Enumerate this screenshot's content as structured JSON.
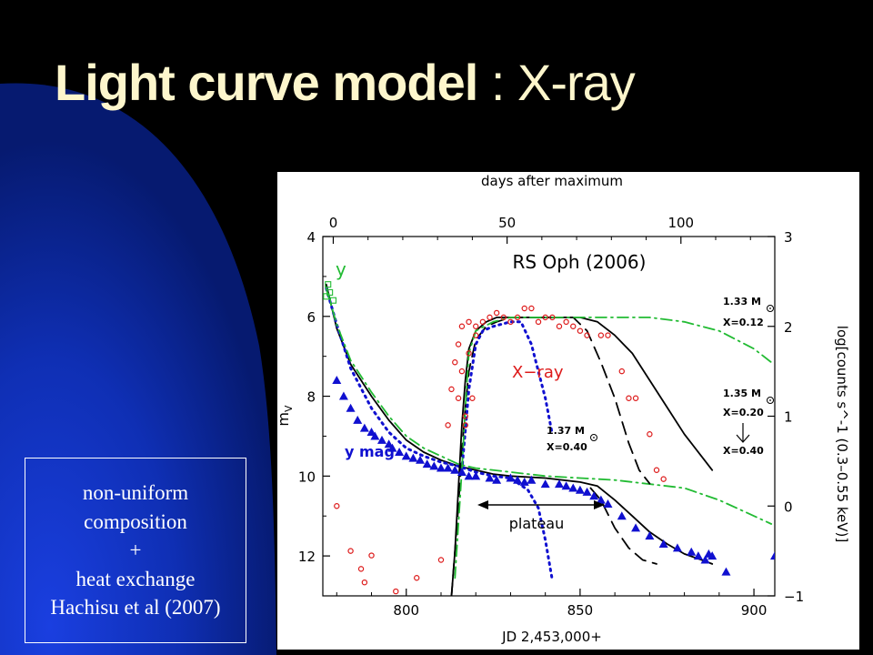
{
  "slide": {
    "title_bold": "Light curve model",
    "title_rest": " : X-ray",
    "note_lines": [
      "non-uniform",
      "composition",
      "+",
      "heat exchange",
      "Hachisu et al (2007)"
    ],
    "colors": {
      "background": "#000000",
      "glow": "#1533c8",
      "title": "#fdf6cc"
    }
  },
  "chart_data": {
    "type": "scatter",
    "title": "RS Oph (2006)",
    "xlabel": "JD 2,453,000+",
    "xlabel_top": "days after maximum",
    "ylabel": "m_V",
    "ylabel_right": "log[counts s^-1 (0.3–0.55 keV)]",
    "xlim": [
      776,
      906
    ],
    "ylim": [
      13,
      4
    ],
    "ylim_right": [
      -1,
      3
    ],
    "x_ticks": [
      800,
      850,
      900
    ],
    "top_ticks": [
      0,
      50,
      100
    ],
    "top_axis_offset": 779,
    "y_ticks": [
      4,
      6,
      8,
      10,
      12
    ],
    "y_right_ticks": [
      -1,
      0,
      1,
      2,
      3
    ],
    "annotations": {
      "y_letter": "y",
      "xray": "X−ray",
      "ymag": "y mag",
      "plateau": "plateau",
      "m133": "1.33 M",
      "x012": "X=0.12",
      "m135": "1.35 M",
      "x020": "X=0.20",
      "x040b": "X=0.40",
      "m137": "1.37 M",
      "x040a": "X=0.40"
    },
    "series": [
      {
        "name": "y mag",
        "marker": "triangle",
        "color": "#1010d0",
        "points": [
          [
            780,
            7.6
          ],
          [
            782,
            8.0
          ],
          [
            784,
            8.3
          ],
          [
            786,
            8.6
          ],
          [
            788,
            8.8
          ],
          [
            790,
            8.9
          ],
          [
            791,
            9.0
          ],
          [
            793,
            9.1
          ],
          [
            795,
            9.2
          ],
          [
            796,
            9.3
          ],
          [
            798,
            9.4
          ],
          [
            800,
            9.5
          ],
          [
            802,
            9.55
          ],
          [
            804,
            9.6
          ],
          [
            806,
            9.7
          ],
          [
            808,
            9.75
          ],
          [
            810,
            9.8
          ],
          [
            812,
            9.8
          ],
          [
            814,
            9.85
          ],
          [
            816,
            9.9
          ],
          [
            818,
            10.0
          ],
          [
            820,
            10.0
          ],
          [
            824,
            10.05
          ],
          [
            826,
            10.1
          ],
          [
            830,
            10.05
          ],
          [
            832,
            10.1
          ],
          [
            834,
            10.15
          ],
          [
            836,
            10.1
          ],
          [
            840,
            10.2
          ],
          [
            844,
            10.2
          ],
          [
            846,
            10.25
          ],
          [
            848,
            10.3
          ],
          [
            850,
            10.35
          ],
          [
            852,
            10.4
          ],
          [
            854,
            10.5
          ],
          [
            856,
            10.6
          ],
          [
            858,
            10.7
          ],
          [
            862,
            11.0
          ],
          [
            866,
            11.3
          ],
          [
            870,
            11.5
          ],
          [
            874,
            11.7
          ],
          [
            878,
            11.8
          ],
          [
            882,
            11.9
          ],
          [
            884,
            12.0
          ],
          [
            886,
            12.1
          ],
          [
            888,
            12.0
          ],
          [
            887,
            11.95
          ],
          [
            892,
            12.4
          ],
          [
            906,
            12.0
          ]
        ]
      },
      {
        "name": "X-ray",
        "marker": "circle",
        "color": "#dd1a1a",
        "points": [
          [
            780,
            0
          ],
          [
            784,
            -0.5
          ],
          [
            787,
            -0.7
          ],
          [
            790,
            -0.55
          ],
          [
            788,
            -0.85
          ],
          [
            797,
            -0.95
          ],
          [
            803,
            -0.8
          ],
          [
            810,
            -0.6
          ],
          [
            812,
            0.9
          ],
          [
            813,
            1.3
          ],
          [
            814,
            1.6
          ],
          [
            815,
            1.8
          ],
          [
            815,
            1.2
          ],
          [
            816,
            1.5
          ],
          [
            816,
            2.0
          ],
          [
            817,
            1.0
          ],
          [
            817,
            0.9
          ],
          [
            818,
            2.05
          ],
          [
            818,
            1.7
          ],
          [
            819,
            1.2
          ],
          [
            820,
            1.9
          ],
          [
            820,
            2.0
          ],
          [
            822,
            2.05
          ],
          [
            824,
            2.1
          ],
          [
            826,
            2.15
          ],
          [
            828,
            2.1
          ],
          [
            830,
            2.05
          ],
          [
            832,
            2.1
          ],
          [
            834,
            2.2
          ],
          [
            836,
            2.2
          ],
          [
            838,
            2.05
          ],
          [
            840,
            2.1
          ],
          [
            842,
            2.1
          ],
          [
            844,
            2.0
          ],
          [
            846,
            2.05
          ],
          [
            848,
            2.0
          ],
          [
            850,
            1.95
          ],
          [
            852,
            1.9
          ],
          [
            856,
            1.9
          ],
          [
            858,
            1.9
          ],
          [
            862,
            1.5
          ],
          [
            864,
            1.2
          ],
          [
            866,
            1.2
          ],
          [
            870,
            0.8
          ],
          [
            872,
            0.4
          ],
          [
            874,
            0.3
          ]
        ]
      },
      {
        "name": "y",
        "marker": "square",
        "color": "#22bb33",
        "points": [
          [
            777,
            5.5
          ],
          [
            777.5,
            5.2
          ],
          [
            778,
            5.4
          ],
          [
            779,
            5.6
          ]
        ]
      }
    ],
    "curves": [
      {
        "name": "y model (solid)",
        "axis": "left",
        "style": "solid",
        "color": "#000000",
        "points": [
          [
            777,
            5.2
          ],
          [
            780,
            6.3
          ],
          [
            784,
            7.2
          ],
          [
            790,
            8.0
          ],
          [
            795,
            8.6
          ],
          [
            800,
            9.1
          ],
          [
            805,
            9.4
          ],
          [
            810,
            9.6
          ],
          [
            815,
            9.75
          ],
          [
            820,
            9.85
          ],
          [
            825,
            9.95
          ],
          [
            830,
            10.0
          ],
          [
            840,
            10.05
          ],
          [
            850,
            10.15
          ],
          [
            855,
            10.25
          ],
          [
            860,
            10.6
          ],
          [
            865,
            11.0
          ],
          [
            870,
            11.4
          ],
          [
            875,
            11.7
          ],
          [
            880,
            11.95
          ],
          [
            885,
            12.1
          ],
          [
            888,
            12.2
          ]
        ]
      },
      {
        "name": "y model (dashed)",
        "axis": "left",
        "style": "dashed",
        "color": "#000000",
        "points": [
          [
            853,
            10.3
          ],
          [
            856,
            10.6
          ],
          [
            860,
            11.3
          ],
          [
            864,
            11.8
          ],
          [
            868,
            12.1
          ],
          [
            872,
            12.2
          ]
        ]
      },
      {
        "name": "y model (dotted)",
        "axis": "left",
        "style": "dotted",
        "color": "#1010d0",
        "points": [
          [
            777,
            5.3
          ],
          [
            780,
            6.2
          ],
          [
            784,
            7.3
          ],
          [
            790,
            8.3
          ],
          [
            795,
            8.9
          ],
          [
            800,
            9.3
          ],
          [
            805,
            9.5
          ],
          [
            810,
            9.65
          ],
          [
            815,
            9.75
          ],
          [
            820,
            9.9
          ],
          [
            825,
            10.0
          ],
          [
            830,
            10.05
          ],
          [
            835,
            10.35
          ],
          [
            838,
            10.8
          ],
          [
            840,
            11.6
          ],
          [
            842,
            12.6
          ]
        ]
      },
      {
        "name": "y model (dash-dot)",
        "axis": "left",
        "style": "dashdot",
        "color": "#22bb33",
        "points": [
          [
            777,
            5.3
          ],
          [
            780,
            6.2
          ],
          [
            784,
            7.1
          ],
          [
            790,
            7.9
          ],
          [
            795,
            8.5
          ],
          [
            800,
            9.0
          ],
          [
            805,
            9.3
          ],
          [
            810,
            9.5
          ],
          [
            815,
            9.7
          ],
          [
            820,
            9.8
          ],
          [
            830,
            9.9
          ],
          [
            840,
            10.0
          ],
          [
            850,
            10.05
          ],
          [
            860,
            10.1
          ],
          [
            870,
            10.2
          ],
          [
            880,
            10.3
          ],
          [
            890,
            10.6
          ],
          [
            900,
            11.0
          ],
          [
            905,
            11.2
          ]
        ]
      },
      {
        "name": "X-ray model (solid)",
        "axis": "right",
        "style": "solid",
        "color": "#000000",
        "points": [
          [
            813,
            -1
          ],
          [
            814,
            -0.5
          ],
          [
            815,
            0.2
          ],
          [
            816,
            0.9
          ],
          [
            817,
            1.4
          ],
          [
            818,
            1.75
          ],
          [
            820,
            1.95
          ],
          [
            823,
            2.05
          ],
          [
            826,
            2.1
          ],
          [
            830,
            2.1
          ],
          [
            840,
            2.1
          ],
          [
            850,
            2.1
          ],
          [
            855,
            2.05
          ],
          [
            860,
            1.9
          ],
          [
            865,
            1.7
          ],
          [
            870,
            1.4
          ],
          [
            875,
            1.1
          ],
          [
            880,
            0.8
          ],
          [
            885,
            0.55
          ],
          [
            888,
            0.4
          ]
        ]
      },
      {
        "name": "X-ray model (dashed)",
        "axis": "right",
        "style": "dashed",
        "color": "#000000",
        "points": [
          [
            813,
            -1
          ],
          [
            814,
            -0.5
          ],
          [
            815,
            0.0
          ],
          [
            816,
            0.6
          ],
          [
            817,
            1.1
          ],
          [
            818,
            1.5
          ],
          [
            820,
            1.85
          ],
          [
            823,
            2.0
          ],
          [
            826,
            2.05
          ],
          [
            830,
            2.1
          ],
          [
            840,
            2.1
          ],
          [
            848,
            2.1
          ],
          [
            852,
            1.95
          ],
          [
            856,
            1.6
          ],
          [
            860,
            1.2
          ],
          [
            864,
            0.7
          ],
          [
            867,
            0.4
          ],
          [
            870,
            0.25
          ]
        ]
      },
      {
        "name": "X-ray model (dotted)",
        "axis": "right",
        "style": "dotted",
        "color": "#1010d0",
        "points": [
          [
            816,
            0.4
          ],
          [
            818,
            1.3
          ],
          [
            820,
            1.8
          ],
          [
            822,
            1.95
          ],
          [
            825,
            2.0
          ],
          [
            830,
            2.05
          ],
          [
            833,
            2.05
          ],
          [
            836,
            1.8
          ],
          [
            838,
            1.5
          ],
          [
            840,
            1.2
          ],
          [
            842,
            0.8
          ]
        ]
      },
      {
        "name": "X-ray model (dash-dot)",
        "axis": "right",
        "style": "dashdot",
        "color": "#22bb33",
        "points": [
          [
            814,
            -0.8
          ],
          [
            815,
            -0.2
          ],
          [
            816,
            0.4
          ],
          [
            817,
            1.1
          ],
          [
            818,
            1.7
          ],
          [
            820,
            1.95
          ],
          [
            825,
            2.05
          ],
          [
            830,
            2.1
          ],
          [
            840,
            2.1
          ],
          [
            850,
            2.1
          ],
          [
            860,
            2.1
          ],
          [
            870,
            2.1
          ],
          [
            880,
            2.05
          ],
          [
            890,
            1.95
          ],
          [
            900,
            1.75
          ],
          [
            905,
            1.6
          ]
        ]
      }
    ]
  }
}
